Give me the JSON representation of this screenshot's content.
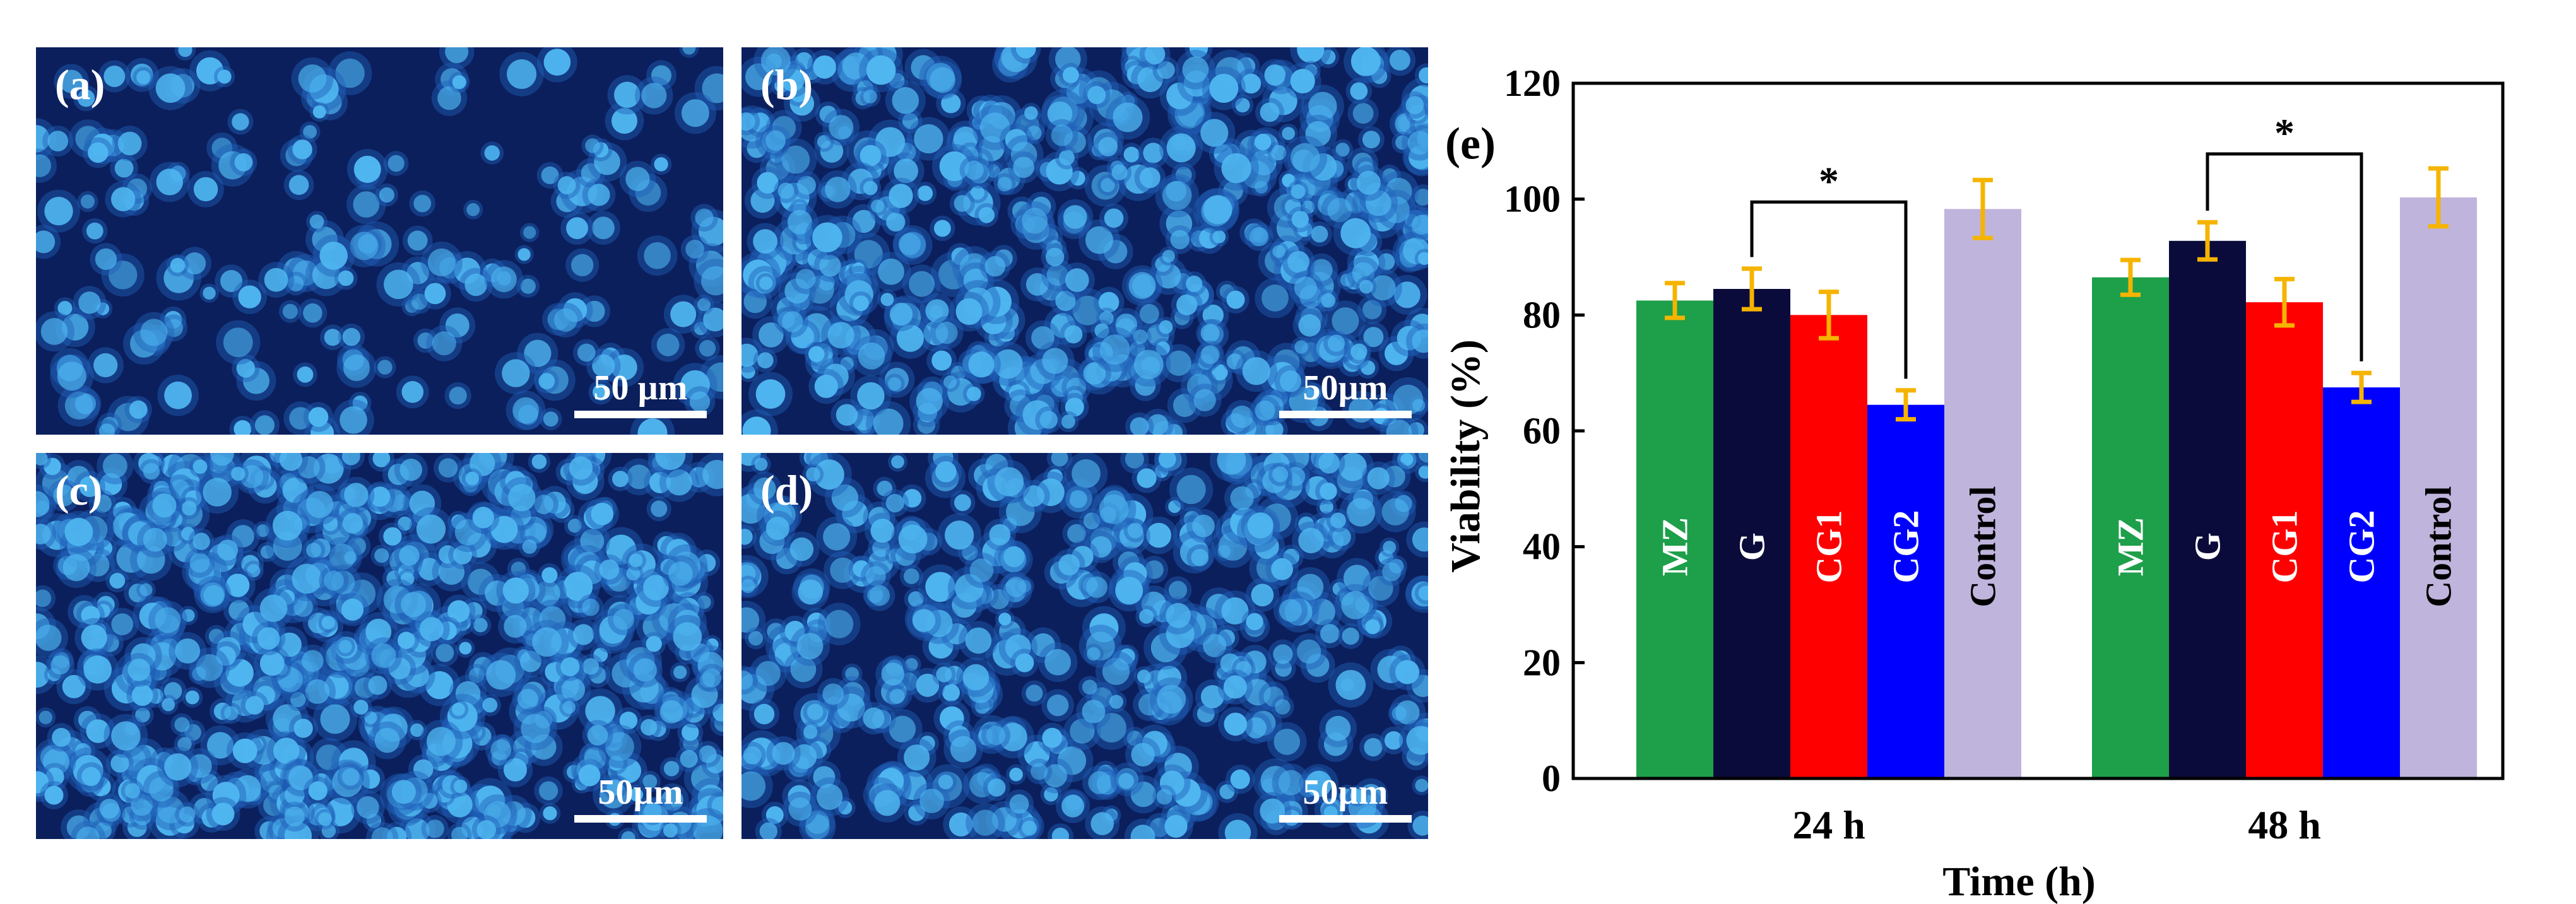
{
  "panels": [
    {
      "id": "a",
      "label": "(a)",
      "scale": "50 µm",
      "density": 190
    },
    {
      "id": "b",
      "label": "(b)",
      "scale": "50µm",
      "density": 520
    },
    {
      "id": "c",
      "label": "(c)",
      "scale": "50µm",
      "density": 640
    },
    {
      "id": "d",
      "label": "(d)",
      "scale": "50µm",
      "density": 430
    }
  ],
  "colors": {
    "MZ": "#1e9f4a",
    "G": "#0b0b3b",
    "CG1": "#ff0000",
    "CG2": "#0000ff",
    "Control": "#bfb4dc",
    "error": "#f5b400",
    "panel_bg": "#0b1f5c",
    "cell": "#4fb6f0"
  },
  "chart_data": {
    "type": "bar",
    "panel_label": "(e)",
    "categories": [
      "24 h",
      "48 h"
    ],
    "series": [
      {
        "name": "MZ",
        "values": [
          82.5,
          86.5
        ],
        "errors": [
          3,
          3
        ]
      },
      {
        "name": "G",
        "values": [
          84.5,
          92.8
        ],
        "errors": [
          3.5,
          3.2
        ]
      },
      {
        "name": "CG1",
        "values": [
          80.0,
          82.2
        ],
        "errors": [
          4,
          4
        ]
      },
      {
        "name": "CG2",
        "values": [
          64.5,
          67.5
        ],
        "errors": [
          2.5,
          2.5
        ]
      },
      {
        "name": "Control",
        "values": [
          98.3,
          100.3
        ],
        "errors": [
          5,
          5
        ]
      }
    ],
    "xlabel": "Time (h)",
    "ylabel": "Viability (%)",
    "ylim": [
      0,
      120
    ],
    "yticks": [
      0,
      20,
      40,
      60,
      80,
      100,
      120
    ],
    "grid": false,
    "significance": [
      {
        "category": "24 h",
        "from": "G",
        "to": "CG2",
        "label": "*"
      },
      {
        "category": "48 h",
        "from": "G",
        "to": "CG2",
        "label": "*"
      }
    ]
  }
}
